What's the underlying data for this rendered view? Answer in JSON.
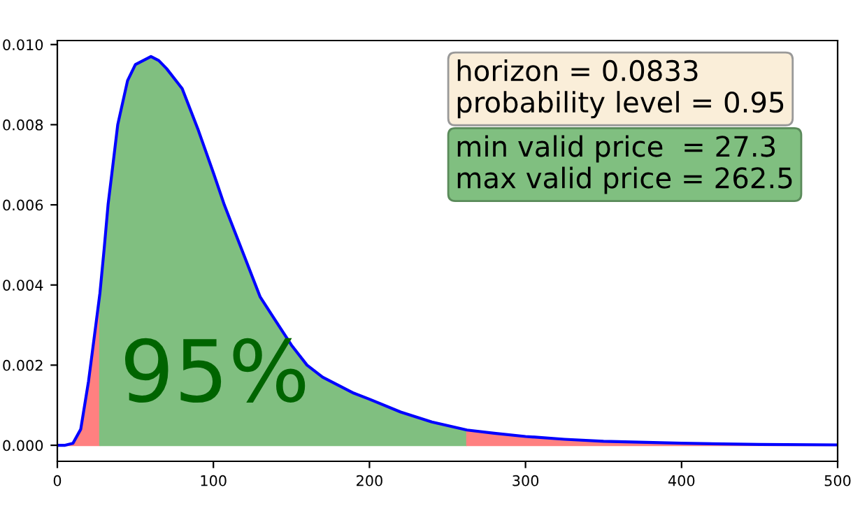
{
  "chart_data": {
    "type": "area",
    "series": [
      {
        "color": "#ff8080",
        "x": [
          0,
          5,
          10,
          15,
          20,
          25,
          27.3
        ],
        "values": [
          0,
          0,
          5e-05,
          0.0004,
          0.0016,
          0.0031,
          0.0038
        ]
      },
      {
        "color": "#80bf80",
        "x": [
          27.3,
          30,
          32.5,
          35,
          38.7,
          45,
          50,
          55,
          60,
          65,
          70,
          80,
          90,
          100,
          107,
          110,
          120,
          126,
          130,
          140,
          150,
          160,
          170,
          180,
          190,
          200,
          220,
          240,
          262.5
        ],
        "values": [
          0.0038,
          0.0049,
          0.006,
          0.0068,
          0.008,
          0.0091,
          0.0095,
          0.0096,
          0.0097,
          0.0096,
          0.0094,
          0.0089,
          0.0079,
          0.0068,
          0.006,
          0.0057,
          0.0047,
          0.0041,
          0.0037,
          0.0031,
          0.0025,
          0.002,
          0.0017,
          0.0015,
          0.0013,
          0.00115,
          0.00083,
          0.00058,
          0.00038
        ]
      },
      {
        "color": "#ff8080",
        "x": [
          262.5,
          280,
          300,
          325,
          350,
          400,
          450,
          500
        ],
        "values": [
          0.00038,
          0.0003,
          0.00022,
          0.00015,
          0.0001,
          5e-05,
          2e-05,
          1e-05
        ]
      },
      {
        "type": "line",
        "color": "#0000ff",
        "x": [
          0,
          5,
          10,
          15,
          20,
          25,
          27.3,
          30,
          32.5,
          35,
          38.7,
          45,
          50,
          55,
          60,
          65,
          70,
          80,
          90,
          100,
          107,
          110,
          120,
          126,
          130,
          140,
          150,
          160,
          170,
          180,
          190,
          200,
          220,
          240,
          262.5,
          280,
          300,
          325,
          350,
          400,
          450,
          500
        ],
        "values": [
          0,
          0,
          5e-05,
          0.0004,
          0.0016,
          0.0031,
          0.0038,
          0.0049,
          0.006,
          0.0068,
          0.008,
          0.0091,
          0.0095,
          0.0096,
          0.0097,
          0.0096,
          0.0094,
          0.0089,
          0.0079,
          0.0068,
          0.006,
          0.0057,
          0.0047,
          0.0041,
          0.0037,
          0.0031,
          0.0025,
          0.002,
          0.0017,
          0.0015,
          0.0013,
          0.00115,
          0.00083,
          0.00058,
          0.00038,
          0.0003,
          0.00022,
          0.00015,
          0.0001,
          5e-05,
          2e-05,
          1e-05
        ]
      }
    ],
    "xlim": [
      0,
      500
    ],
    "xticks": [
      0,
      100,
      200,
      300,
      400,
      500
    ],
    "ylim": [
      -0.0004,
      0.0101
    ],
    "yticks": [
      {
        "value": 0,
        "label": "0.000"
      },
      {
        "value": 0.002,
        "label": "0.002"
      },
      {
        "value": 0.004,
        "label": "0.004"
      },
      {
        "value": 0.006,
        "label": "0.006"
      },
      {
        "value": 0.008,
        "label": "0.008"
      },
      {
        "value": 0.01,
        "label": "0.010"
      }
    ],
    "annotations": [
      "horizon = 0.0833\nprobability level = 0.95",
      "min valid price  = 27.3\nmax valid price = 262.5",
      "95%"
    ],
    "grid": false,
    "legend": false
  }
}
